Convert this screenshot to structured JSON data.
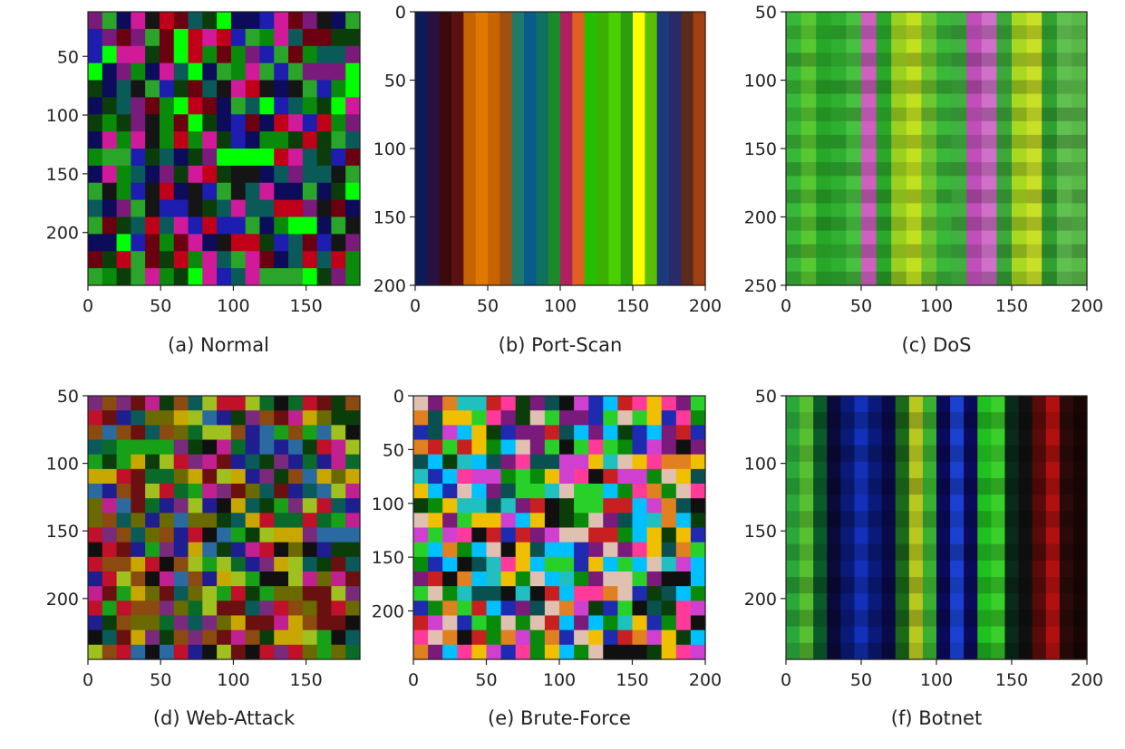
{
  "figure": {
    "type": "image-grid",
    "description_source": "six pixel-image heatmaps of network traffic classes"
  },
  "chart_data": [
    {
      "type": "heatmap",
      "caption": "(a) Normal",
      "pattern": "random",
      "palette": [
        "#00ff00",
        "#0a8a0a",
        "#0b3d0b",
        "#c00018",
        "#6a0010",
        "#1d1db0",
        "#0c0c5a",
        "#7a1a7a",
        "#d01a9a",
        "#0a5a5a",
        "#151515",
        "#2aa52a"
      ],
      "xlim": [
        0,
        187
      ],
      "ylim_top": 12,
      "ylim_bottom": 245,
      "xticks": [
        0,
        50,
        100,
        150
      ],
      "yticks": [
        50,
        100,
        150,
        200
      ]
    },
    {
      "type": "heatmap",
      "caption": "(b) Port-Scan",
      "pattern": "stripes",
      "palette": [
        "#0d1a5a",
        "#2a1040",
        "#3a0a0a",
        "#5a1010",
        "#c86400",
        "#e07800",
        "#c86400",
        "#a05010",
        "#207a6a",
        "#0a5a8a",
        "#0e7060",
        "#1c8a2a",
        "#b0205a",
        "#e06020",
        "#22c000",
        "#3ab000",
        "#4ad000",
        "#2aa010",
        "#ffff00",
        "#58c000",
        "#1a3a7a",
        "#2a2a6a",
        "#5a2a1a",
        "#a04010"
      ],
      "xlim": [
        0,
        200
      ],
      "ylim_top": 0,
      "ylim_bottom": 200,
      "xticks": [
        0,
        50,
        100,
        150,
        200
      ],
      "yticks": [
        0,
        50,
        100,
        150,
        200
      ]
    },
    {
      "type": "heatmap",
      "caption": "(c) DoS",
      "pattern": "columns",
      "palette": [
        "#38b838",
        "#58c830",
        "#28a828",
        "#30b030",
        "#48c040",
        "#d060c0",
        "#2aa82a",
        "#9ad020",
        "#c0e020",
        "#70c830",
        "#3ab83a",
        "#40b040",
        "#c050b8",
        "#d070c8",
        "#3aa83a",
        "#a8d820",
        "#c8e028",
        "#30a030",
        "#60c050",
        "#58b848"
      ],
      "xlim": [
        0,
        200
      ],
      "ylim_top": 50,
      "ylim_bottom": 250,
      "xticks": [
        0,
        50,
        100,
        150,
        200
      ],
      "yticks": [
        50,
        100,
        150,
        200,
        250
      ]
    },
    {
      "type": "heatmap",
      "caption": "(d) Web-Attack",
      "pattern": "random",
      "palette": [
        "#0b3d0b",
        "#0a6a2a",
        "#c8a800",
        "#6a1010",
        "#c0102a",
        "#1e1e90",
        "#0a5a5a",
        "#6a6a00",
        "#101010",
        "#18a018",
        "#7a2a7a",
        "#a0c020",
        "#c02090",
        "#2a6aa0",
        "#8a4a10"
      ],
      "xlim": [
        0,
        187
      ],
      "ylim_top": 50,
      "ylim_bottom": 245,
      "xticks": [
        0,
        50,
        100,
        150
      ],
      "yticks": [
        50,
        100,
        150,
        200
      ]
    },
    {
      "type": "heatmap",
      "caption": "(e) Brute-Force",
      "pattern": "random",
      "palette": [
        "#f0c000",
        "#20c0c0",
        "#ff3a9a",
        "#0a8a0a",
        "#101010",
        "#1e2ab0",
        "#e08020",
        "#d040d0",
        "#2ad02a",
        "#c82020",
        "#0a5050",
        "#e0c0b0",
        "#00c0ff",
        "#7a1a7a",
        "#0b3d0b"
      ],
      "xlim": [
        0,
        200
      ],
      "ylim_top": 0,
      "ylim_bottom": 245,
      "xticks": [
        0,
        50,
        100,
        150,
        200
      ],
      "yticks": [
        0,
        50,
        100,
        150,
        200
      ]
    },
    {
      "type": "heatmap",
      "caption": "(f) Botnet",
      "pattern": "columns",
      "palette": [
        "#2aa83a",
        "#58c030",
        "#0a5a2a",
        "#0a0a3a",
        "#0a1a7a",
        "#1230b8",
        "#0a1a7a",
        "#0a0a4a",
        "#1a6a1a",
        "#b8c820",
        "#3ab030",
        "#0a0a5a",
        "#1a40d0",
        "#0a0a5a",
        "#20c020",
        "#3ad02a",
        "#0a2a1a",
        "#101010",
        "#5a0a0a",
        "#b01010",
        "#2a0a0a",
        "#1a0505"
      ],
      "xlim": [
        0,
        200
      ],
      "ylim_top": 50,
      "ylim_bottom": 245,
      "xticks": [
        0,
        50,
        100,
        150,
        200
      ],
      "yticks": [
        50,
        100,
        150,
        200
      ]
    }
  ]
}
